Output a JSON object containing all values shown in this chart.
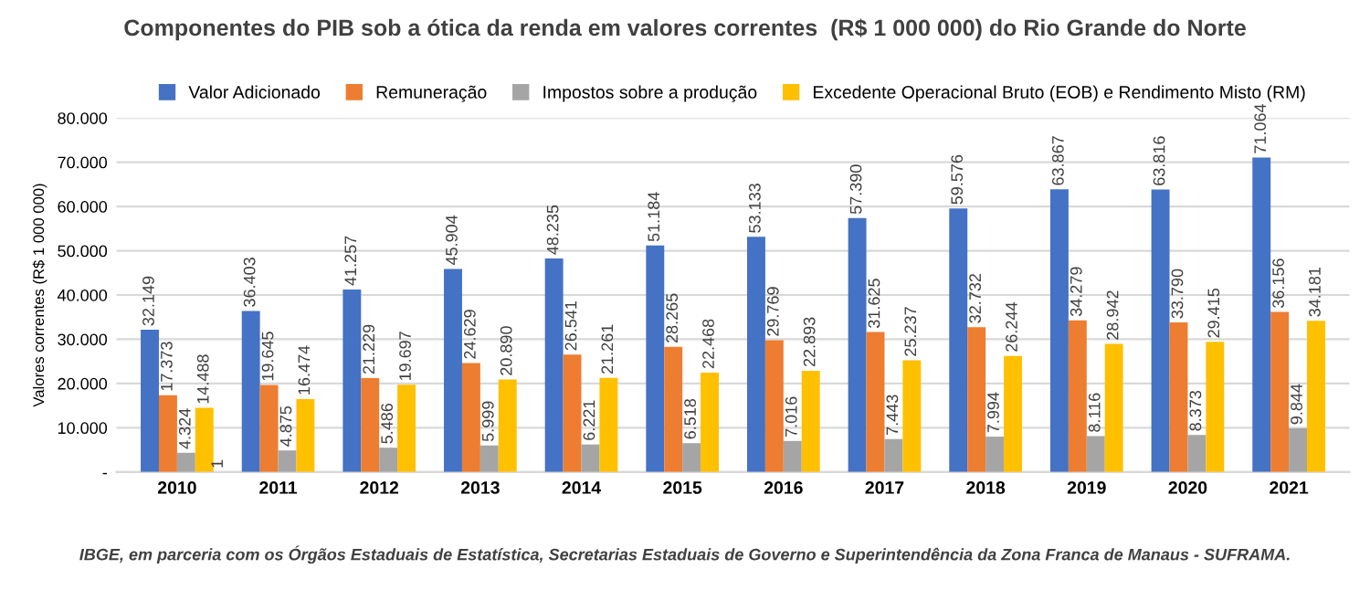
{
  "chart_data": {
    "type": "bar",
    "title": "Componentes do PIB sob a ótica da renda em valores correntes  (R$ 1 000 000) do Rio Grande do Norte",
    "ylabel": "Valores correntes (R$ 1 000 000)",
    "categories": [
      "2010",
      "2011",
      "2012",
      "2013",
      "2014",
      "2015",
      "2016",
      "2017",
      "2018",
      "2019",
      "2020",
      "2021"
    ],
    "series": [
      {
        "name": "Valor Adicionado",
        "color": "#4472c4",
        "values": [
          32149,
          36403,
          41257,
          45904,
          48235,
          51184,
          53133,
          57390,
          59576,
          63867,
          63816,
          71064
        ],
        "value_labels": [
          "32.149",
          "36.403",
          "41.257",
          "45.904",
          "48.235",
          "51.184",
          "53.133",
          "57.390",
          "59.576",
          "63.867",
          "63.816",
          "71.064"
        ]
      },
      {
        "name": "Remuneração",
        "color": "#ed7d31",
        "values": [
          17373,
          19645,
          21229,
          24629,
          26541,
          28265,
          29769,
          31625,
          32732,
          34279,
          33790,
          36156
        ],
        "value_labels": [
          "17.373",
          "19.645",
          "21.229",
          "24.629",
          "26.541",
          "28.265",
          "29.769",
          "31.625",
          "32.732",
          "34.279",
          "33.790",
          "36.156"
        ]
      },
      {
        "name": "Impostos sobre a produção",
        "color": "#a5a5a5",
        "values": [
          4324,
          4875,
          5486,
          5999,
          6221,
          6518,
          7016,
          7443,
          7994,
          8116,
          8373,
          9844
        ],
        "value_labels": [
          "4.324",
          "4.875",
          "5.486",
          "5.999",
          "6.221",
          "6.518",
          "7.016",
          "7.443",
          "7.994",
          "8.116",
          "8.373",
          "9.844"
        ]
      },
      {
        "name": "Excedente Operacional Bruto (EOB) e Rendimento Misto (RM)",
        "color": "#ffc000",
        "values": [
          14488,
          16474,
          19697,
          20890,
          21261,
          22468,
          22893,
          25237,
          26244,
          28942,
          29415,
          34181
        ],
        "value_labels": [
          "14.488",
          "16.474",
          "19.697",
          "20.890",
          "21.261",
          "22.468",
          "22.893",
          "25.237",
          "26.244",
          "28.942",
          "29.415",
          "34.181"
        ]
      }
    ],
    "ylim": [
      0,
      80000
    ],
    "yticks": [
      {
        "value": 0,
        "label": "-"
      },
      {
        "value": 10000,
        "label": "10.000"
      },
      {
        "value": 20000,
        "label": "20.000"
      },
      {
        "value": 30000,
        "label": "30.000"
      },
      {
        "value": 40000,
        "label": "40.000"
      },
      {
        "value": 50000,
        "label": "50.000"
      },
      {
        "value": 60000,
        "label": "60.000"
      },
      {
        "value": 70000,
        "label": "70.000"
      },
      {
        "value": 80000,
        "label": "80.000"
      }
    ],
    "grid": "y",
    "legend": "top",
    "annotations": [
      {
        "text": "1",
        "x": "2010",
        "y": 1
      },
      "IBGE, em parceria com os Órgãos Estaduais de Estatística, Secretarias Estaduais de Governo e Superintendência da Zona Franca de Manaus - SUFRAMA."
    ]
  }
}
